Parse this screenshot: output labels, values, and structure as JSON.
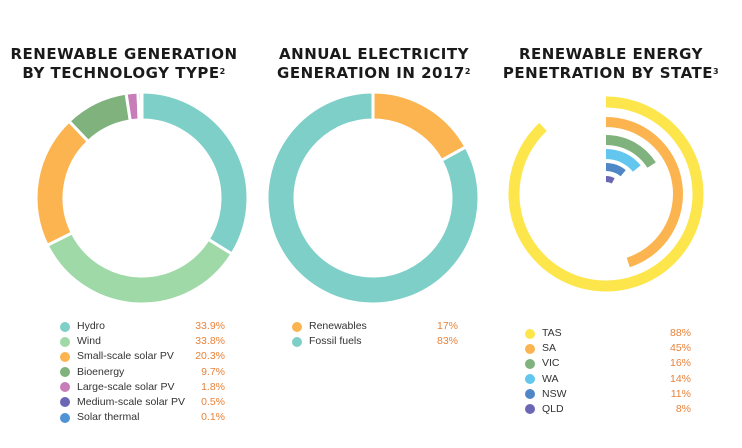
{
  "chart_data": [
    {
      "type": "pie",
      "title_lines": [
        "RENEWABLE GENERATION",
        "BY TECHNOLOGY TYPE"
      ],
      "title_sup": "2",
      "categories": [
        "Hydro",
        "Wind",
        "Small-scale solar PV",
        "Bioenergy",
        "Large-scale solar PV",
        "Medium-scale solar PV",
        "Solar thermal"
      ],
      "values": [
        33.9,
        33.8,
        20.3,
        9.7,
        1.8,
        0.5,
        0.1
      ],
      "value_labels": [
        "33.9%",
        "33.8%",
        "20.3%",
        "9.7%",
        "1.8%",
        "0.5%",
        "0.1%"
      ],
      "colors": [
        "#7dcfc8",
        "#9fd9a8",
        "#fbb450",
        "#7fb27d",
        "#c77db8",
        "#6b67b5",
        "#4f93d6"
      ]
    },
    {
      "type": "pie",
      "title_lines": [
        "ANNUAL ELECTRICITY",
        "GENERATION IN 2017"
      ],
      "title_sup": "2",
      "categories": [
        "Renewables",
        "Fossil fuels"
      ],
      "values": [
        17,
        83
      ],
      "value_labels": [
        "17%",
        "83%"
      ],
      "colors": [
        "#fbb450",
        "#7dcfc8"
      ]
    },
    {
      "type": "bar",
      "orientation": "radial",
      "title_lines": [
        "RENEWABLE ENERGY",
        "PENETRATION BY STATE"
      ],
      "title_sup": "3",
      "categories": [
        "TAS",
        "SA",
        "VIC",
        "WA",
        "NSW",
        "QLD"
      ],
      "values": [
        88,
        45,
        16,
        14,
        11,
        8
      ],
      "value_labels": [
        "88%",
        "45%",
        "16%",
        "14%",
        "11%",
        "8%"
      ],
      "colors": [
        "#fde64b",
        "#fbb450",
        "#7fb27d",
        "#62c6ee",
        "#4f86c6",
        "#6b67b5"
      ]
    }
  ]
}
